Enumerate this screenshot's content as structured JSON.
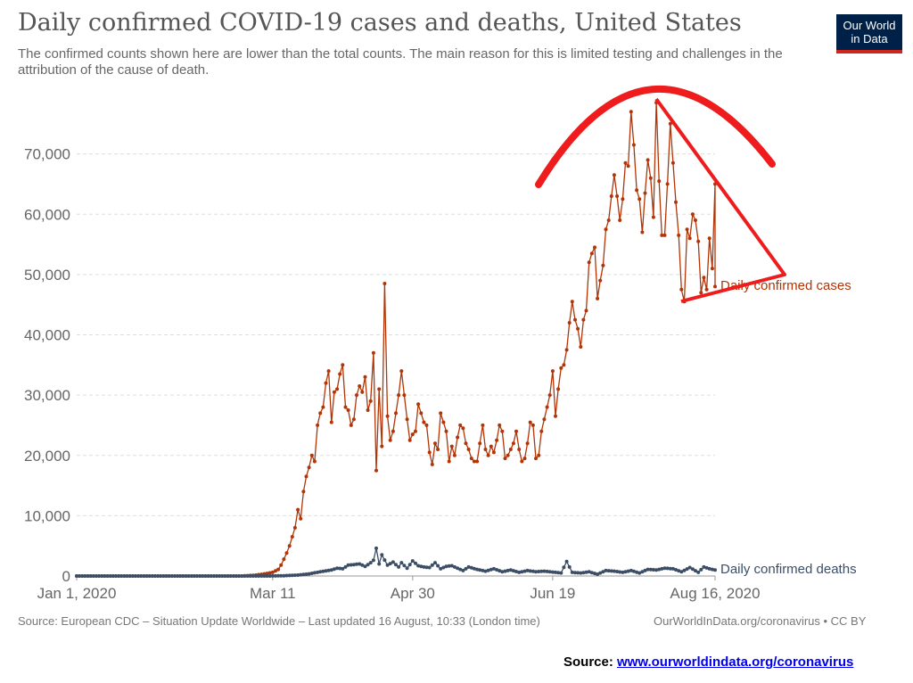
{
  "chart_data": {
    "type": "line",
    "title": "Daily confirmed COVID-19 cases and deaths, United States",
    "subtitle": "The confirmed counts shown here are lower than the total counts. The main reason for this is limited testing and challenges in the attribution of the cause of death.",
    "x_start": "2020-01-01",
    "x_end": "2020-08-16",
    "x_ticks": [
      "Jan 1, 2020",
      "Mar 11",
      "Apr 30",
      "Jun 19",
      "Aug 16, 2020"
    ],
    "y_ticks": [
      "0",
      "10,000",
      "20,000",
      "30,000",
      "40,000",
      "50,000",
      "60,000",
      "70,000"
    ],
    "ylim": [
      0,
      80000
    ],
    "grid": "horizontal-dashed",
    "legend": "inline-right",
    "series": [
      {
        "name": "Daily confirmed cases",
        "color": "#b13507",
        "points": [
          [
            "2020-01-01",
            0
          ],
          [
            "2020-02-29",
            0
          ],
          [
            "2020-03-05",
            150
          ],
          [
            "2020-03-08",
            350
          ],
          [
            "2020-03-11",
            600
          ],
          [
            "2020-03-13",
            1100
          ],
          [
            "2020-03-14",
            1800
          ],
          [
            "2020-03-15",
            2800
          ],
          [
            "2020-03-16",
            3800
          ],
          [
            "2020-03-17",
            5000
          ],
          [
            "2020-03-18",
            6500
          ],
          [
            "2020-03-19",
            8000
          ],
          [
            "2020-03-20",
            11000
          ],
          [
            "2020-03-21",
            9500
          ],
          [
            "2020-03-22",
            14000
          ],
          [
            "2020-03-23",
            16500
          ],
          [
            "2020-03-24",
            18000
          ],
          [
            "2020-03-25",
            20000
          ],
          [
            "2020-03-26",
            19000
          ],
          [
            "2020-03-27",
            25000
          ],
          [
            "2020-03-28",
            27000
          ],
          [
            "2020-03-29",
            28000
          ],
          [
            "2020-03-30",
            32000
          ],
          [
            "2020-03-31",
            34000
          ],
          [
            "2020-04-01",
            25500
          ],
          [
            "2020-04-02",
            30500
          ],
          [
            "2020-04-03",
            31000
          ],
          [
            "2020-04-04",
            33500
          ],
          [
            "2020-04-05",
            35000
          ],
          [
            "2020-04-06",
            28000
          ],
          [
            "2020-04-07",
            27500
          ],
          [
            "2020-04-08",
            25000
          ],
          [
            "2020-04-09",
            26000
          ],
          [
            "2020-04-10",
            30000
          ],
          [
            "2020-04-11",
            31500
          ],
          [
            "2020-04-12",
            30500
          ],
          [
            "2020-04-13",
            33000
          ],
          [
            "2020-04-14",
            27500
          ],
          [
            "2020-04-15",
            29000
          ],
          [
            "2020-04-16",
            37000
          ],
          [
            "2020-04-17",
            17500
          ],
          [
            "2020-04-18",
            31000
          ],
          [
            "2020-04-19",
            21500
          ],
          [
            "2020-04-20",
            48500
          ],
          [
            "2020-04-21",
            26500
          ],
          [
            "2020-04-22",
            22500
          ],
          [
            "2020-04-23",
            24000
          ],
          [
            "2020-04-24",
            27000
          ],
          [
            "2020-04-25",
            30000
          ],
          [
            "2020-04-26",
            34000
          ],
          [
            "2020-04-27",
            30000
          ],
          [
            "2020-04-28",
            26000
          ],
          [
            "2020-04-29",
            22500
          ],
          [
            "2020-04-30",
            23500
          ],
          [
            "2020-05-01",
            24000
          ],
          [
            "2020-05-02",
            28500
          ],
          [
            "2020-05-03",
            27000
          ],
          [
            "2020-05-04",
            25500
          ],
          [
            "2020-05-05",
            25000
          ],
          [
            "2020-05-06",
            20500
          ],
          [
            "2020-05-07",
            18500
          ],
          [
            "2020-05-08",
            22000
          ],
          [
            "2020-05-09",
            21000
          ],
          [
            "2020-05-10",
            27000
          ],
          [
            "2020-05-11",
            25500
          ],
          [
            "2020-05-12",
            24000
          ],
          [
            "2020-05-13",
            19000
          ],
          [
            "2020-05-14",
            21500
          ],
          [
            "2020-05-15",
            20000
          ],
          [
            "2020-05-16",
            23000
          ],
          [
            "2020-05-17",
            25000
          ],
          [
            "2020-05-18",
            24500
          ],
          [
            "2020-05-19",
            22000
          ],
          [
            "2020-05-20",
            21000
          ],
          [
            "2020-05-21",
            19500
          ],
          [
            "2020-05-22",
            19000
          ],
          [
            "2020-05-23",
            19000
          ],
          [
            "2020-05-24",
            22000
          ],
          [
            "2020-05-25",
            25000
          ],
          [
            "2020-05-26",
            21000
          ],
          [
            "2020-05-27",
            20000
          ],
          [
            "2020-05-28",
            21500
          ],
          [
            "2020-05-29",
            20500
          ],
          [
            "2020-05-30",
            22500
          ],
          [
            "2020-05-31",
            25000
          ],
          [
            "2020-06-01",
            24000
          ],
          [
            "2020-06-02",
            19500
          ],
          [
            "2020-06-03",
            20000
          ],
          [
            "2020-06-04",
            21000
          ],
          [
            "2020-06-05",
            22000
          ],
          [
            "2020-06-06",
            24000
          ],
          [
            "2020-06-07",
            21000
          ],
          [
            "2020-06-08",
            19000
          ],
          [
            "2020-06-09",
            19500
          ],
          [
            "2020-06-10",
            22000
          ],
          [
            "2020-06-11",
            25500
          ],
          [
            "2020-06-12",
            25000
          ],
          [
            "2020-06-13",
            19500
          ],
          [
            "2020-06-14",
            20000
          ],
          [
            "2020-06-15",
            24000
          ],
          [
            "2020-06-16",
            26000
          ],
          [
            "2020-06-17",
            28000
          ],
          [
            "2020-06-18",
            30000
          ],
          [
            "2020-06-19",
            34000
          ],
          [
            "2020-06-20",
            26500
          ],
          [
            "2020-06-21",
            31000
          ],
          [
            "2020-06-22",
            34500
          ],
          [
            "2020-06-23",
            35000
          ],
          [
            "2020-06-24",
            37500
          ],
          [
            "2020-06-25",
            42000
          ],
          [
            "2020-06-26",
            45500
          ],
          [
            "2020-06-27",
            42500
          ],
          [
            "2020-06-28",
            41000
          ],
          [
            "2020-06-29",
            38000
          ],
          [
            "2020-06-30",
            42500
          ],
          [
            "2020-07-01",
            44000
          ],
          [
            "2020-07-02",
            52000
          ],
          [
            "2020-07-03",
            53500
          ],
          [
            "2020-07-04",
            54500
          ],
          [
            "2020-07-05",
            46000
          ],
          [
            "2020-07-06",
            49000
          ],
          [
            "2020-07-07",
            51500
          ],
          [
            "2020-07-08",
            57500
          ],
          [
            "2020-07-09",
            59000
          ],
          [
            "2020-07-10",
            63000
          ],
          [
            "2020-07-11",
            66500
          ],
          [
            "2020-07-12",
            63000
          ],
          [
            "2020-07-13",
            59000
          ],
          [
            "2020-07-14",
            62500
          ],
          [
            "2020-07-15",
            68500
          ],
          [
            "2020-07-16",
            68000
          ],
          [
            "2020-07-17",
            77000
          ],
          [
            "2020-07-18",
            71500
          ],
          [
            "2020-07-19",
            64000
          ],
          [
            "2020-07-20",
            62500
          ],
          [
            "2020-07-21",
            57000
          ],
          [
            "2020-07-22",
            63500
          ],
          [
            "2020-07-23",
            69000
          ],
          [
            "2020-07-24",
            66000
          ],
          [
            "2020-07-25",
            59500
          ],
          [
            "2020-07-26",
            78500
          ],
          [
            "2020-07-27",
            65500
          ],
          [
            "2020-07-28",
            56500
          ],
          [
            "2020-07-29",
            56500
          ],
          [
            "2020-07-30",
            65000
          ],
          [
            "2020-07-31",
            75000
          ],
          [
            "2020-08-01",
            68500
          ],
          [
            "2020-08-02",
            62000
          ],
          [
            "2020-08-03",
            56500
          ],
          [
            "2020-08-04",
            47500
          ],
          [
            "2020-08-05",
            45500
          ],
          [
            "2020-08-06",
            57500
          ],
          [
            "2020-08-07",
            56000
          ],
          [
            "2020-08-08",
            60000
          ],
          [
            "2020-08-09",
            59000
          ],
          [
            "2020-08-10",
            55500
          ],
          [
            "2020-08-11",
            47000
          ],
          [
            "2020-08-12",
            49500
          ],
          [
            "2020-08-13",
            47500
          ],
          [
            "2020-08-14",
            56000
          ],
          [
            "2020-08-15",
            51000
          ],
          [
            "2020-08-16",
            65000
          ],
          [
            "2020-08-16",
            48000
          ]
        ]
      },
      {
        "name": "Daily confirmed deaths",
        "color": "#3c4e66",
        "points": [
          [
            "2020-01-01",
            0
          ],
          [
            "2020-03-10",
            0
          ],
          [
            "2020-03-15",
            50
          ],
          [
            "2020-03-20",
            150
          ],
          [
            "2020-03-24",
            350
          ],
          [
            "2020-03-28",
            700
          ],
          [
            "2020-04-01",
            1000
          ],
          [
            "2020-04-03",
            1300
          ],
          [
            "2020-04-05",
            1200
          ],
          [
            "2020-04-07",
            1800
          ],
          [
            "2020-04-09",
            1900
          ],
          [
            "2020-04-11",
            2000
          ],
          [
            "2020-04-13",
            1600
          ],
          [
            "2020-04-15",
            2200
          ],
          [
            "2020-04-16",
            2600
          ],
          [
            "2020-04-17",
            4600
          ],
          [
            "2020-04-18",
            2000
          ],
          [
            "2020-04-19",
            3500
          ],
          [
            "2020-04-21",
            1800
          ],
          [
            "2020-04-23",
            2300
          ],
          [
            "2020-04-25",
            1500
          ],
          [
            "2020-04-26",
            2200
          ],
          [
            "2020-04-28",
            1300
          ],
          [
            "2020-04-30",
            2500
          ],
          [
            "2020-05-02",
            1700
          ],
          [
            "2020-05-04",
            1500
          ],
          [
            "2020-05-06",
            1400
          ],
          [
            "2020-05-08",
            2200
          ],
          [
            "2020-05-10",
            1200
          ],
          [
            "2020-05-12",
            1600
          ],
          [
            "2020-05-14",
            1700
          ],
          [
            "2020-05-16",
            1300
          ],
          [
            "2020-05-18",
            900
          ],
          [
            "2020-05-20",
            1500
          ],
          [
            "2020-05-23",
            1100
          ],
          [
            "2020-05-26",
            800
          ],
          [
            "2020-05-29",
            1200
          ],
          [
            "2020-06-01",
            700
          ],
          [
            "2020-06-04",
            1000
          ],
          [
            "2020-06-07",
            600
          ],
          [
            "2020-06-10",
            900
          ],
          [
            "2020-06-13",
            700
          ],
          [
            "2020-06-16",
            800
          ],
          [
            "2020-06-19",
            650
          ],
          [
            "2020-06-22",
            500
          ],
          [
            "2020-06-24",
            2400
          ],
          [
            "2020-06-26",
            600
          ],
          [
            "2020-06-29",
            500
          ],
          [
            "2020-07-02",
            700
          ],
          [
            "2020-07-05",
            300
          ],
          [
            "2020-07-08",
            900
          ],
          [
            "2020-07-11",
            800
          ],
          [
            "2020-07-14",
            600
          ],
          [
            "2020-07-17",
            900
          ],
          [
            "2020-07-20",
            500
          ],
          [
            "2020-07-23",
            1100
          ],
          [
            "2020-07-26",
            1000
          ],
          [
            "2020-07-29",
            1300
          ],
          [
            "2020-08-01",
            1200
          ],
          [
            "2020-08-04",
            700
          ],
          [
            "2020-08-07",
            1400
          ],
          [
            "2020-08-10",
            600
          ],
          [
            "2020-08-12",
            1500
          ],
          [
            "2020-08-14",
            1200
          ],
          [
            "2020-08-16",
            1000
          ]
        ]
      }
    ]
  },
  "logo": {
    "line1": "Our World",
    "line2": "in Data"
  },
  "footer": {
    "source": "Source: European CDC – Situation Update Worldwide – Last updated 16 August, 10:33 (London time)",
    "credit": "OurWorldInData.org/coronavirus • CC BY"
  },
  "source_line": {
    "label": "Source: ",
    "link": "www.ourworldindata.org/coronavirus"
  },
  "annotation_color": "#ee1c1c"
}
